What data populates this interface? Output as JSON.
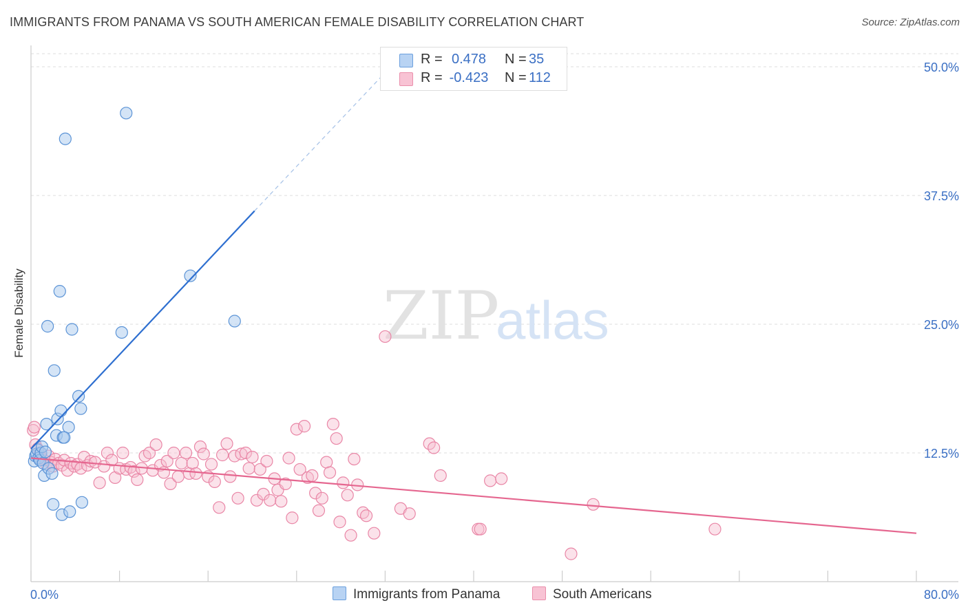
{
  "title": "IMMIGRANTS FROM PANAMA VS SOUTH AMERICAN FEMALE DISABILITY CORRELATION CHART",
  "source": "Source: ZipAtlas.com",
  "watermark": {
    "zip": "ZIP",
    "atlas": "atlas"
  },
  "legend": {
    "r_label": "R =",
    "n_label": "N =",
    "series": [
      {
        "name": "Immigrants from Panama",
        "r": "0.478",
        "n": "35",
        "fill": "#b8d3f3",
        "stroke": "#6a9fdd"
      },
      {
        "name": "South Americans",
        "r": "-0.423",
        "n": "112",
        "fill": "#f8c3d4",
        "stroke": "#ea8eab"
      }
    ]
  },
  "colors": {
    "blue_fill": "#aac9ee",
    "blue_stroke": "#5b93d6",
    "blue_line": "#2e6fd0",
    "pink_fill": "#f6bfd1",
    "pink_stroke": "#e986a6",
    "pink_line": "#e5668f",
    "grid": "#dcdcdc",
    "axis_text": "#3a6fc4"
  },
  "chart_data": {
    "type": "scatter",
    "title": "IMMIGRANTS FROM PANAMA VS SOUTH AMERICAN FEMALE DISABILITY CORRELATION CHART",
    "xlabel": "",
    "ylabel": "Female Disability",
    "xlim": [
      0,
      80
    ],
    "ylim": [
      0,
      50
    ],
    "x_tick_labels": {
      "left": "0.0%",
      "right": "80.0%"
    },
    "y_ticks": [
      {
        "value": 12.5,
        "label": "12.5%"
      },
      {
        "value": 25.0,
        "label": "25.0%"
      },
      {
        "value": 37.5,
        "label": "37.5%"
      },
      {
        "value": 50.0,
        "label": "50.0%"
      }
    ],
    "series": [
      {
        "name": "Immigrants from Panama",
        "r": 0.478,
        "n": 35,
        "trend": {
          "x0": 0,
          "y0": 12.9,
          "x1": 20.2,
          "y1": 36.0,
          "dash_to_x": 32.5,
          "dash_to_y": 50.0
        },
        "points": [
          [
            0.3,
            11.7
          ],
          [
            0.4,
            12.2
          ],
          [
            0.5,
            12.4
          ],
          [
            0.6,
            12.8
          ],
          [
            0.7,
            12.0
          ],
          [
            0.8,
            11.8
          ],
          [
            0.9,
            12.5
          ],
          [
            1.0,
            13.1
          ],
          [
            1.1,
            11.5
          ],
          [
            1.2,
            10.3
          ],
          [
            1.3,
            12.6
          ],
          [
            1.4,
            15.3
          ],
          [
            1.5,
            24.8
          ],
          [
            1.6,
            11.0
          ],
          [
            1.9,
            10.5
          ],
          [
            2.0,
            7.5
          ],
          [
            2.1,
            20.5
          ],
          [
            2.3,
            14.2
          ],
          [
            2.4,
            15.8
          ],
          [
            2.6,
            28.2
          ],
          [
            2.7,
            16.6
          ],
          [
            2.8,
            6.5
          ],
          [
            2.9,
            14.0
          ],
          [
            3.1,
            43.0
          ],
          [
            3.4,
            15.0
          ],
          [
            3.5,
            6.8
          ],
          [
            3.7,
            24.5
          ],
          [
            4.3,
            18.0
          ],
          [
            4.5,
            16.8
          ],
          [
            4.6,
            7.7
          ],
          [
            8.2,
            24.2
          ],
          [
            8.6,
            45.5
          ],
          [
            14.4,
            29.7
          ],
          [
            18.4,
            25.3
          ],
          [
            3.0,
            14.0
          ]
        ]
      },
      {
        "name": "South Americans",
        "r": -0.423,
        "n": 112,
        "trend": {
          "x0": 0,
          "y0": 12.0,
          "x1": 80,
          "y1": 4.7
        },
        "points": [
          [
            0.2,
            14.7
          ],
          [
            0.4,
            13.3
          ],
          [
            0.6,
            12.9
          ],
          [
            0.8,
            12.5
          ],
          [
            1.0,
            12.0
          ],
          [
            1.2,
            11.8
          ],
          [
            1.4,
            11.4
          ],
          [
            1.6,
            12.2
          ],
          [
            1.8,
            11.6
          ],
          [
            2.0,
            11.2
          ],
          [
            2.2,
            11.9
          ],
          [
            2.5,
            11.5
          ],
          [
            2.8,
            11.3
          ],
          [
            3.0,
            11.8
          ],
          [
            3.3,
            10.8
          ],
          [
            3.6,
            11.5
          ],
          [
            3.9,
            11.2
          ],
          [
            4.2,
            11.4
          ],
          [
            4.5,
            11.0
          ],
          [
            4.8,
            12.1
          ],
          [
            5.1,
            11.3
          ],
          [
            5.4,
            11.7
          ],
          [
            5.8,
            11.6
          ],
          [
            6.2,
            9.6
          ],
          [
            6.6,
            11.2
          ],
          [
            6.9,
            12.5
          ],
          [
            7.3,
            11.8
          ],
          [
            7.6,
            10.1
          ],
          [
            8.0,
            11.0
          ],
          [
            8.3,
            12.5
          ],
          [
            8.6,
            10.9
          ],
          [
            9.0,
            11.1
          ],
          [
            9.3,
            10.7
          ],
          [
            9.6,
            9.9
          ],
          [
            10.0,
            11.0
          ],
          [
            10.3,
            12.2
          ],
          [
            10.7,
            12.5
          ],
          [
            11.0,
            10.8
          ],
          [
            11.3,
            13.3
          ],
          [
            11.7,
            11.3
          ],
          [
            12.0,
            10.6
          ],
          [
            12.3,
            11.7
          ],
          [
            12.6,
            9.5
          ],
          [
            12.9,
            12.5
          ],
          [
            13.3,
            10.2
          ],
          [
            13.6,
            11.5
          ],
          [
            14.0,
            12.5
          ],
          [
            14.3,
            10.5
          ],
          [
            14.6,
            11.5
          ],
          [
            14.9,
            10.5
          ],
          [
            15.3,
            13.1
          ],
          [
            15.6,
            12.4
          ],
          [
            16.0,
            10.2
          ],
          [
            16.3,
            11.4
          ],
          [
            16.6,
            9.7
          ],
          [
            17.0,
            7.2
          ],
          [
            17.3,
            12.3
          ],
          [
            17.7,
            13.4
          ],
          [
            18.0,
            10.2
          ],
          [
            18.4,
            12.2
          ],
          [
            18.7,
            8.1
          ],
          [
            19.0,
            12.4
          ],
          [
            19.4,
            12.5
          ],
          [
            19.7,
            11.0
          ],
          [
            20.0,
            12.1
          ],
          [
            20.4,
            7.9
          ],
          [
            20.7,
            10.9
          ],
          [
            21.0,
            8.5
          ],
          [
            21.3,
            11.7
          ],
          [
            21.6,
            7.9
          ],
          [
            22.0,
            10.0
          ],
          [
            22.3,
            8.9
          ],
          [
            22.6,
            7.8
          ],
          [
            23.0,
            9.5
          ],
          [
            23.3,
            12.0
          ],
          [
            23.6,
            6.2
          ],
          [
            24.0,
            14.8
          ],
          [
            24.3,
            10.9
          ],
          [
            24.7,
            15.1
          ],
          [
            25.0,
            10.1
          ],
          [
            25.4,
            10.3
          ],
          [
            25.7,
            8.6
          ],
          [
            26.0,
            6.9
          ],
          [
            26.3,
            8.1
          ],
          [
            26.7,
            11.6
          ],
          [
            27.0,
            10.6
          ],
          [
            27.3,
            15.3
          ],
          [
            27.6,
            13.9
          ],
          [
            27.9,
            5.8
          ],
          [
            28.2,
            9.6
          ],
          [
            28.6,
            8.4
          ],
          [
            28.9,
            4.5
          ],
          [
            29.2,
            11.9
          ],
          [
            29.5,
            9.4
          ],
          [
            30.0,
            6.7
          ],
          [
            30.3,
            6.4
          ],
          [
            31.0,
            4.7
          ],
          [
            33.4,
            7.1
          ],
          [
            34.2,
            6.6
          ],
          [
            36.0,
            13.4
          ],
          [
            36.4,
            13.0
          ],
          [
            37.0,
            10.3
          ],
          [
            40.4,
            5.1
          ],
          [
            40.6,
            5.1
          ],
          [
            41.5,
            9.8
          ],
          [
            42.5,
            10.0
          ],
          [
            48.8,
            2.7
          ],
          [
            50.8,
            7.5
          ],
          [
            61.8,
            5.1
          ],
          [
            32.0,
            23.8
          ],
          [
            0.3,
            15.0
          ]
        ]
      }
    ]
  }
}
